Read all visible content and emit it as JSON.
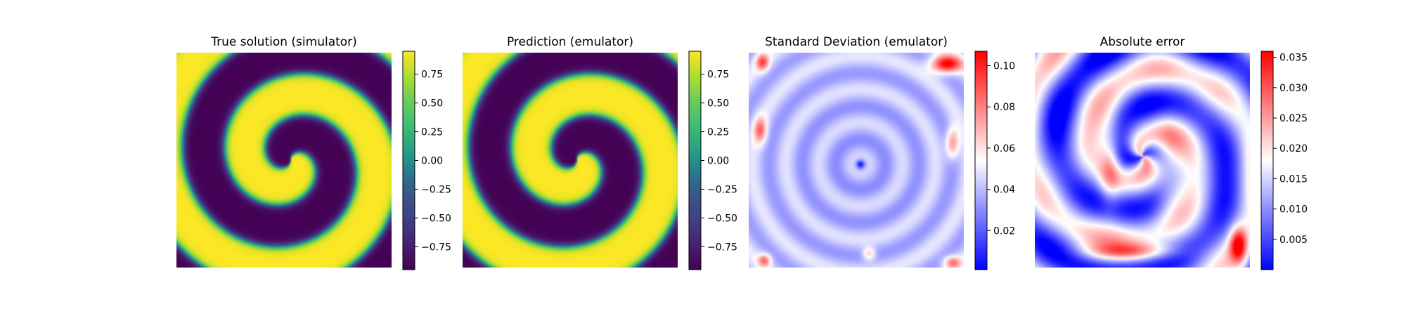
{
  "chart_data": [
    {
      "type": "heatmap",
      "title": "True solution (simulator)",
      "field": "spiral",
      "colormap": "viridis",
      "colorbar": {
        "vmin": -0.95,
        "vmax": 0.95,
        "ticks": [
          0.75,
          0.5,
          0.25,
          0.0,
          -0.25,
          -0.5,
          -0.75
        ],
        "tick_labels": [
          "0.75",
          "0.50",
          "0.25",
          "0.00",
          "−0.25",
          "−0.50",
          "−0.75"
        ]
      }
    },
    {
      "type": "heatmap",
      "title": "Prediction (emulator)",
      "field": "spiral",
      "colormap": "viridis",
      "colorbar": {
        "vmin": -0.95,
        "vmax": 0.95,
        "ticks": [
          0.75,
          0.5,
          0.25,
          0.0,
          -0.25,
          -0.5,
          -0.75
        ],
        "tick_labels": [
          "0.75",
          "0.50",
          "0.25",
          "0.00",
          "−0.25",
          "−0.50",
          "−0.75"
        ]
      }
    },
    {
      "type": "heatmap",
      "title": "Standard Deviation (emulator)",
      "field": "std",
      "colormap": "bwr",
      "colorbar": {
        "vmin": 0.001,
        "vmax": 0.107,
        "ticks": [
          0.1,
          0.08,
          0.06,
          0.04,
          0.02
        ],
        "tick_labels": [
          "0.10",
          "0.08",
          "0.06",
          "0.04",
          "0.02"
        ]
      }
    },
    {
      "type": "heatmap",
      "title": "Absolute error",
      "field": "error",
      "colormap": "bwr",
      "colorbar": {
        "vmin": 0.0,
        "vmax": 0.036,
        "ticks": [
          0.035,
          0.03,
          0.025,
          0.02,
          0.015,
          0.01,
          0.005
        ],
        "tick_labels": [
          "0.035",
          "0.030",
          "0.025",
          "0.020",
          "0.015",
          "0.010",
          "0.005"
        ]
      }
    }
  ]
}
